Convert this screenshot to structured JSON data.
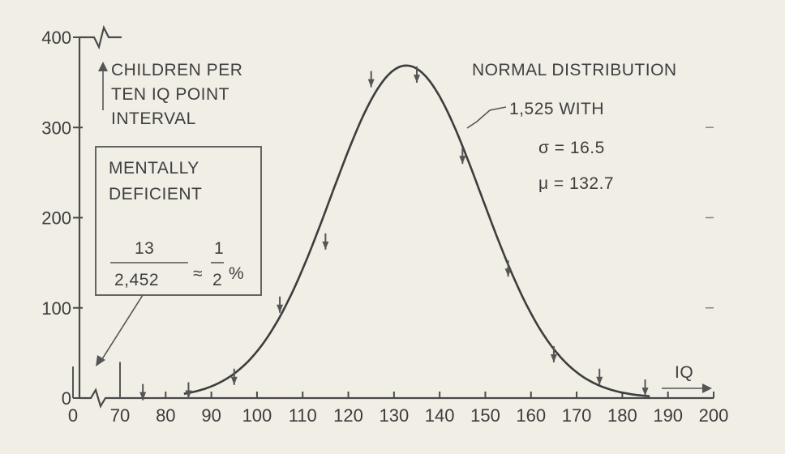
{
  "chart_data": {
    "type": "line",
    "title": "",
    "xlabel": "IQ",
    "ylabel": "CHILDREN PER TEN IQ POINT INTERVAL",
    "xlim": [
      0,
      200
    ],
    "ylim": [
      0,
      400
    ],
    "x_tick_labels": [
      "0",
      "70",
      "80",
      "90",
      "100",
      "110",
      "120",
      "130",
      "140",
      "150",
      "160",
      "170",
      "180",
      "190",
      "200"
    ],
    "y_tick_labels": [
      "0",
      "100",
      "200",
      "300",
      "400"
    ],
    "x_axis_break_after": "0",
    "series": [
      {
        "name": "NORMAL DISTRIBUTION",
        "distribution": "normal",
        "n": 1525,
        "sigma": 16.5,
        "mu": 132.7
      }
    ],
    "observed_points": [
      {
        "x": 75,
        "y": 3
      },
      {
        "x": 85,
        "y": 5
      },
      {
        "x": 95,
        "y": 20
      },
      {
        "x": 105,
        "y": 100
      },
      {
        "x": 115,
        "y": 170
      },
      {
        "x": 125,
        "y": 350
      },
      {
        "x": 135,
        "y": 355
      },
      {
        "x": 145,
        "y": 265
      },
      {
        "x": 155,
        "y": 140
      },
      {
        "x": 165,
        "y": 45
      },
      {
        "x": 175,
        "y": 20
      },
      {
        "x": 185,
        "y": 8
      }
    ],
    "mentally_deficient_bars": [
      {
        "x": 0,
        "y": 35
      },
      {
        "x": 70,
        "y": 40
      }
    ],
    "annotations": {
      "ylabel_lines": [
        "CHILDREN PER",
        "TEN IQ POINT",
        "INTERVAL"
      ],
      "legend_title": "NORMAL DISTRIBUTION",
      "legend_count": "1,525 WITH",
      "legend_sigma": "σ = 16.5",
      "legend_mu": "μ = 132.7",
      "box_title_lines": [
        "MENTALLY",
        "DEFICIENT"
      ],
      "box_numerator": "13",
      "box_denominator": "2,452",
      "box_approx": "≈",
      "box_half_numerator": "1",
      "box_half_denominator": "2",
      "box_percent": "%",
      "iq_label": "IQ"
    },
    "grid": false
  }
}
